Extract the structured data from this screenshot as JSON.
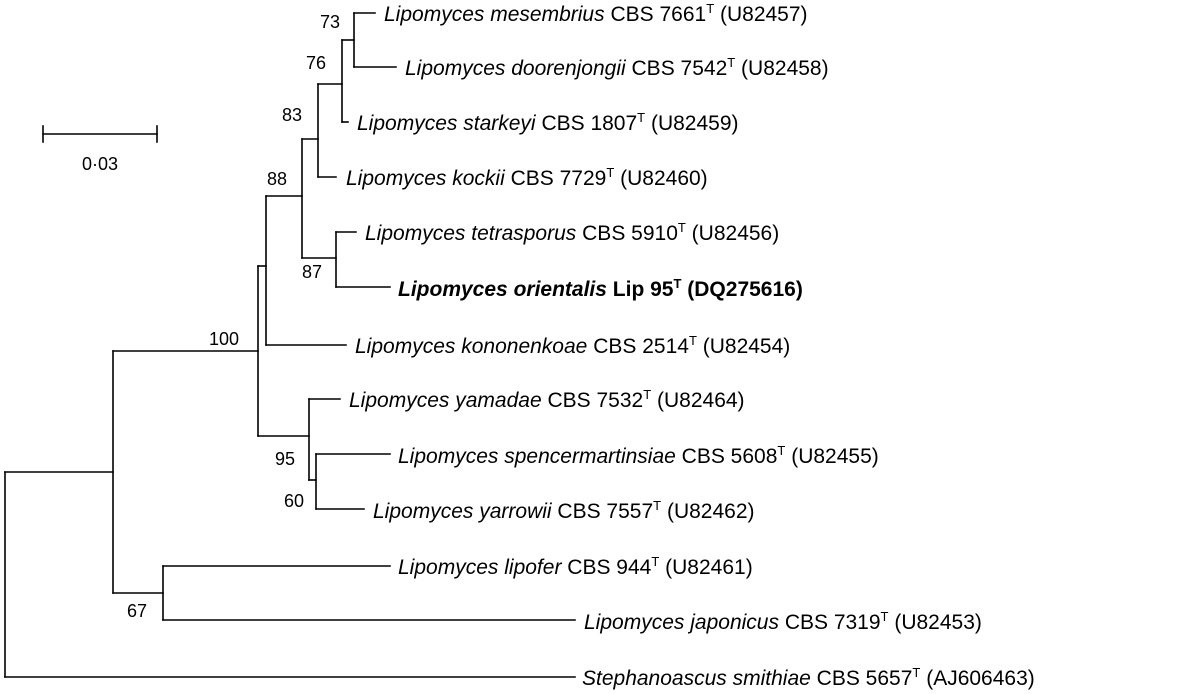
{
  "scale_bar": {
    "label": "0·03",
    "length": 0.03
  },
  "taxa": [
    {
      "id": "mesembrius",
      "genus": "Lipomyces",
      "species": "mesembrius",
      "strain": "CBS 7661",
      "type_mark": "T",
      "accession": "(U82457)"
    },
    {
      "id": "doorenjongii",
      "genus": "Lipomyces",
      "species": "doorenjongii",
      "strain": "CBS 7542",
      "type_mark": "T",
      "accession": "(U82458)"
    },
    {
      "id": "starkeyi",
      "genus": "Lipomyces",
      "species": "starkeyi",
      "strain": "CBS 1807",
      "type_mark": "T",
      "accession": "(U82459)"
    },
    {
      "id": "kockii",
      "genus": "Lipomyces",
      "species": "kockii",
      "strain": "CBS 7729",
      "type_mark": "T",
      "accession": "(U82460)"
    },
    {
      "id": "tetrasporus",
      "genus": "Lipomyces",
      "species": "tetrasporus",
      "strain": "CBS 5910",
      "type_mark": "T",
      "accession": "(U82456)"
    },
    {
      "id": "orientalis",
      "genus": "Lipomyces",
      "species": "orientalis",
      "strain": "Lip 95",
      "type_mark": "T",
      "accession": "(DQ275616)",
      "highlight": true
    },
    {
      "id": "kononenkoae",
      "genus": "Lipomyces",
      "species": "kononenkoae",
      "strain": "CBS 2514",
      "type_mark": "T",
      "accession": "(U82454)"
    },
    {
      "id": "yamadae",
      "genus": "Lipomyces",
      "species": "yamadae",
      "strain": "CBS 7532",
      "type_mark": "T",
      "accession": "(U82464)"
    },
    {
      "id": "spencermartinsiae",
      "genus": "Lipomyces",
      "species": "spencermartinsiae",
      "strain": "CBS 5608",
      "type_mark": "T",
      "accession": "(U82455)"
    },
    {
      "id": "yarrowii",
      "genus": "Lipomyces",
      "species": "yarrowii",
      "strain": "CBS 7557",
      "type_mark": "T",
      "accession": "(U82462)"
    },
    {
      "id": "lipofer",
      "genus": "Lipomyces",
      "species": "lipofer",
      "strain": "CBS 944",
      "type_mark": "T",
      "accession": "(U82461)"
    },
    {
      "id": "japonicus",
      "genus": "Lipomyces",
      "species": "japonicus",
      "strain": "CBS 7319",
      "type_mark": "T",
      "accession": "(U82453)"
    },
    {
      "id": "smithiae",
      "genus": "Stephanoascus",
      "species": "smithiae",
      "strain": "CBS 5657",
      "type_mark": "T",
      "accession": "(AJ606463)"
    }
  ],
  "bootstrap": {
    "n73": "73",
    "n76": "76",
    "n83": "83",
    "n88": "88",
    "n87": "87",
    "n100": "100",
    "n95": "95",
    "n60": "60",
    "n67": "67"
  }
}
